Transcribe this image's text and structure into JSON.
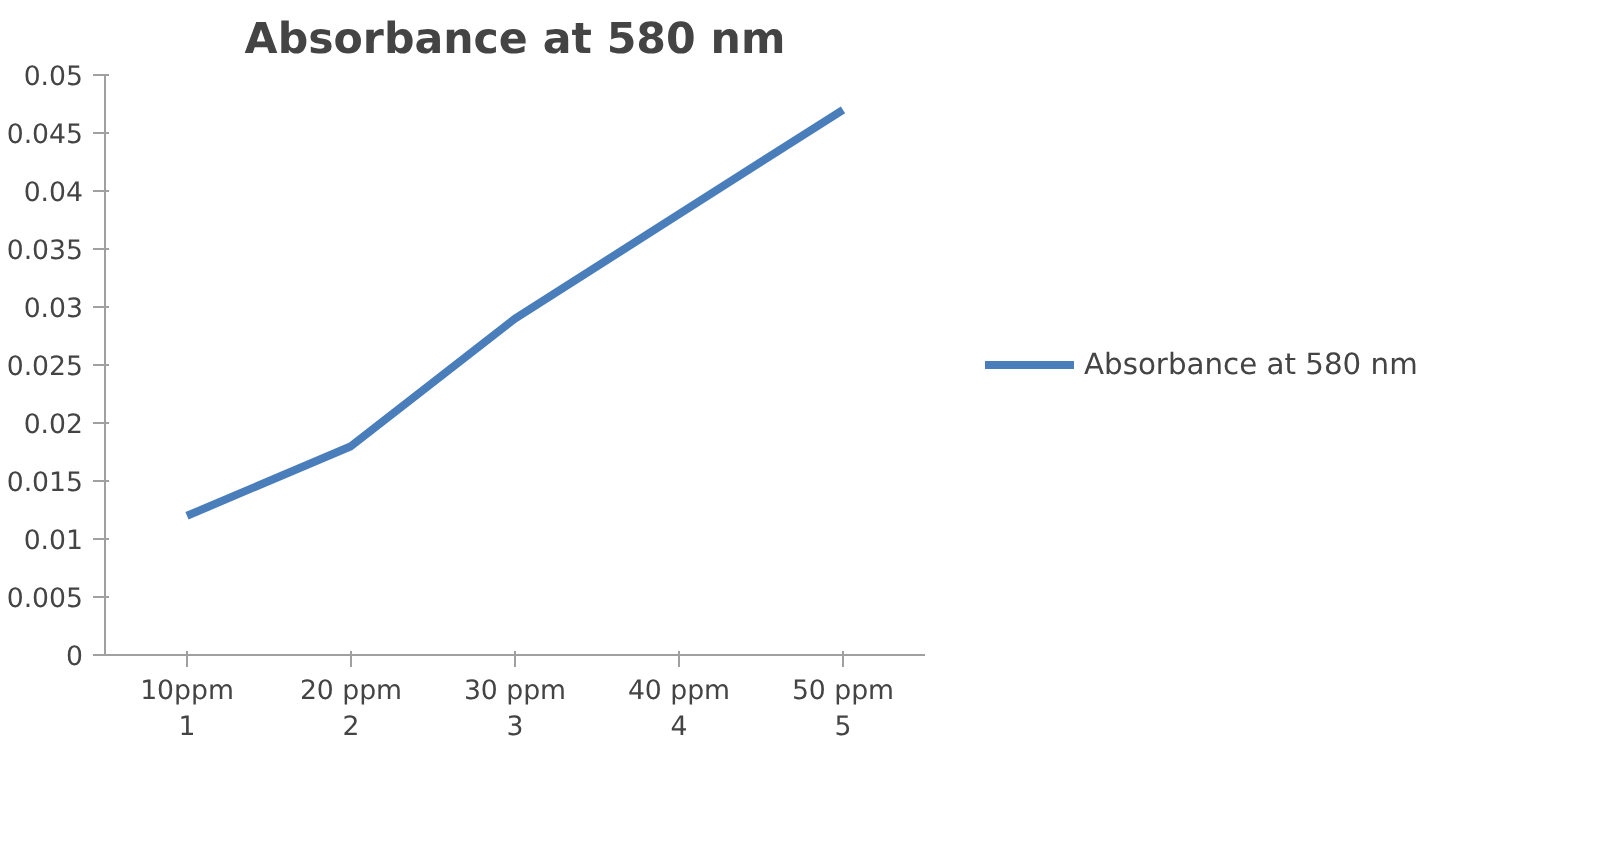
{
  "chart_data": {
    "type": "line",
    "title": "Absorbance at 580 nm",
    "categories": [
      "10ppm\n1",
      "20 ppm\n2",
      "30 ppm\n3",
      "40 ppm\n4",
      "50 ppm\n5"
    ],
    "series": [
      {
        "name": "Absorbance at 580 nm",
        "color": "#4a7ebb",
        "values": [
          0.012,
          0.018,
          0.029,
          0.038,
          0.047
        ]
      }
    ],
    "ylim": [
      0,
      0.05
    ],
    "yticks": [
      0,
      0.005,
      0.01,
      0.015,
      0.02,
      0.025,
      0.03,
      0.035,
      0.04,
      0.045,
      0.05
    ],
    "grid": false,
    "legend": "right",
    "marker": "none",
    "line_style": "solid"
  }
}
